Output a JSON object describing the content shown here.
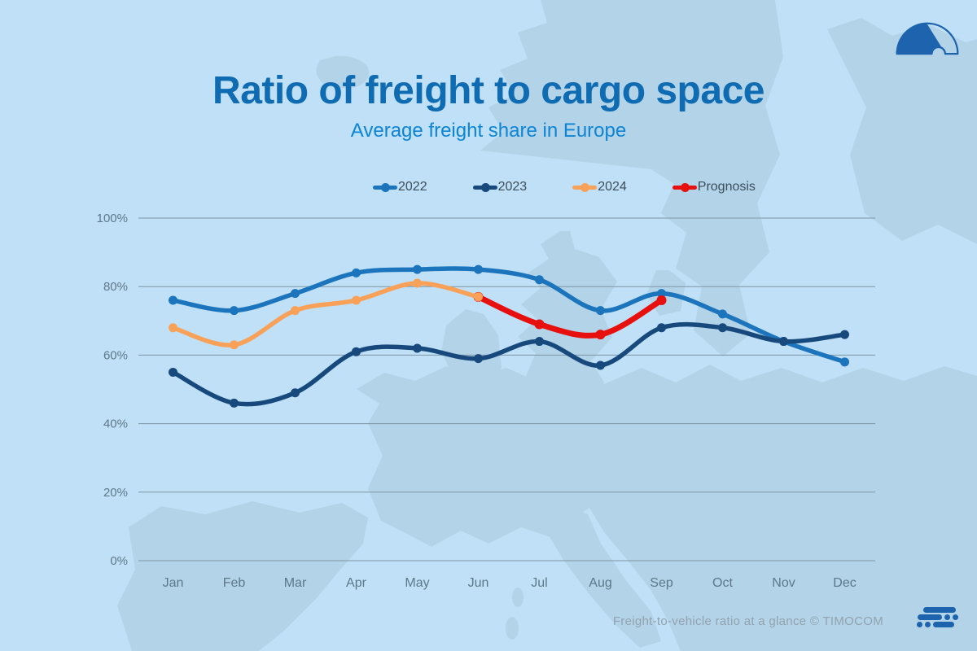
{
  "header": {
    "title": "Ratio of freight to cargo space",
    "subtitle": "Average freight share in Europe"
  },
  "footer": {
    "caption": "Freight-to-vehicle ratio at a glance © TIMOCOM"
  },
  "icons": {
    "top_right": "gauge-logo",
    "bottom_right": "timocom-bars-logo"
  },
  "colors": {
    "bg": "#BFE0F6",
    "map": "#B2D3E8",
    "grid": "#7E95A6",
    "axis_text": "#5E7889",
    "title": "#0F6BB2",
    "subtitle": "#0D84D4",
    "legend_text": "#3D4E5B",
    "footer_text": "#93A2AE",
    "logo_blue": "#1E63AD"
  },
  "chart_data": {
    "type": "line",
    "title": "Ratio of freight to cargo space",
    "subtitle": "Average freight share in Europe",
    "categories": [
      "Jan",
      "Feb",
      "Mar",
      "Apr",
      "May",
      "Jun",
      "Jul",
      "Aug",
      "Sep",
      "Oct",
      "Nov",
      "Dec"
    ],
    "ytick_labels": [
      "0%",
      "20%",
      "40%",
      "60%",
      "80%",
      "100%"
    ],
    "ylim": [
      0,
      100
    ],
    "grid": true,
    "legend_position": "top",
    "series": [
      {
        "name": "2022",
        "color": "#1C75BC",
        "line_width": 5.5,
        "dot_radius": 5.5,
        "values": [
          76,
          73,
          78,
          84,
          85,
          85,
          82,
          73,
          78,
          72,
          64,
          58
        ]
      },
      {
        "name": "2023",
        "color": "#17497D",
        "line_width": 5.5,
        "dot_radius": 5.5,
        "values": [
          55,
          46,
          49,
          61,
          62,
          59,
          64,
          57,
          68,
          68,
          64,
          66
        ]
      },
      {
        "name": "2024",
        "color": "#F9A159",
        "line_width": 5.5,
        "dot_radius": 5.5,
        "values": [
          68,
          63,
          73,
          76,
          81,
          77,
          null,
          null,
          null,
          null,
          null,
          null
        ]
      },
      {
        "name": "Prognosis",
        "color": "#E8100F",
        "line_width": 7,
        "dot_radius": 6,
        "values": [
          null,
          null,
          null,
          null,
          null,
          77,
          69,
          66,
          76,
          null,
          null,
          null
        ]
      }
    ],
    "draw_order": [
      0,
      1,
      3,
      2
    ]
  }
}
